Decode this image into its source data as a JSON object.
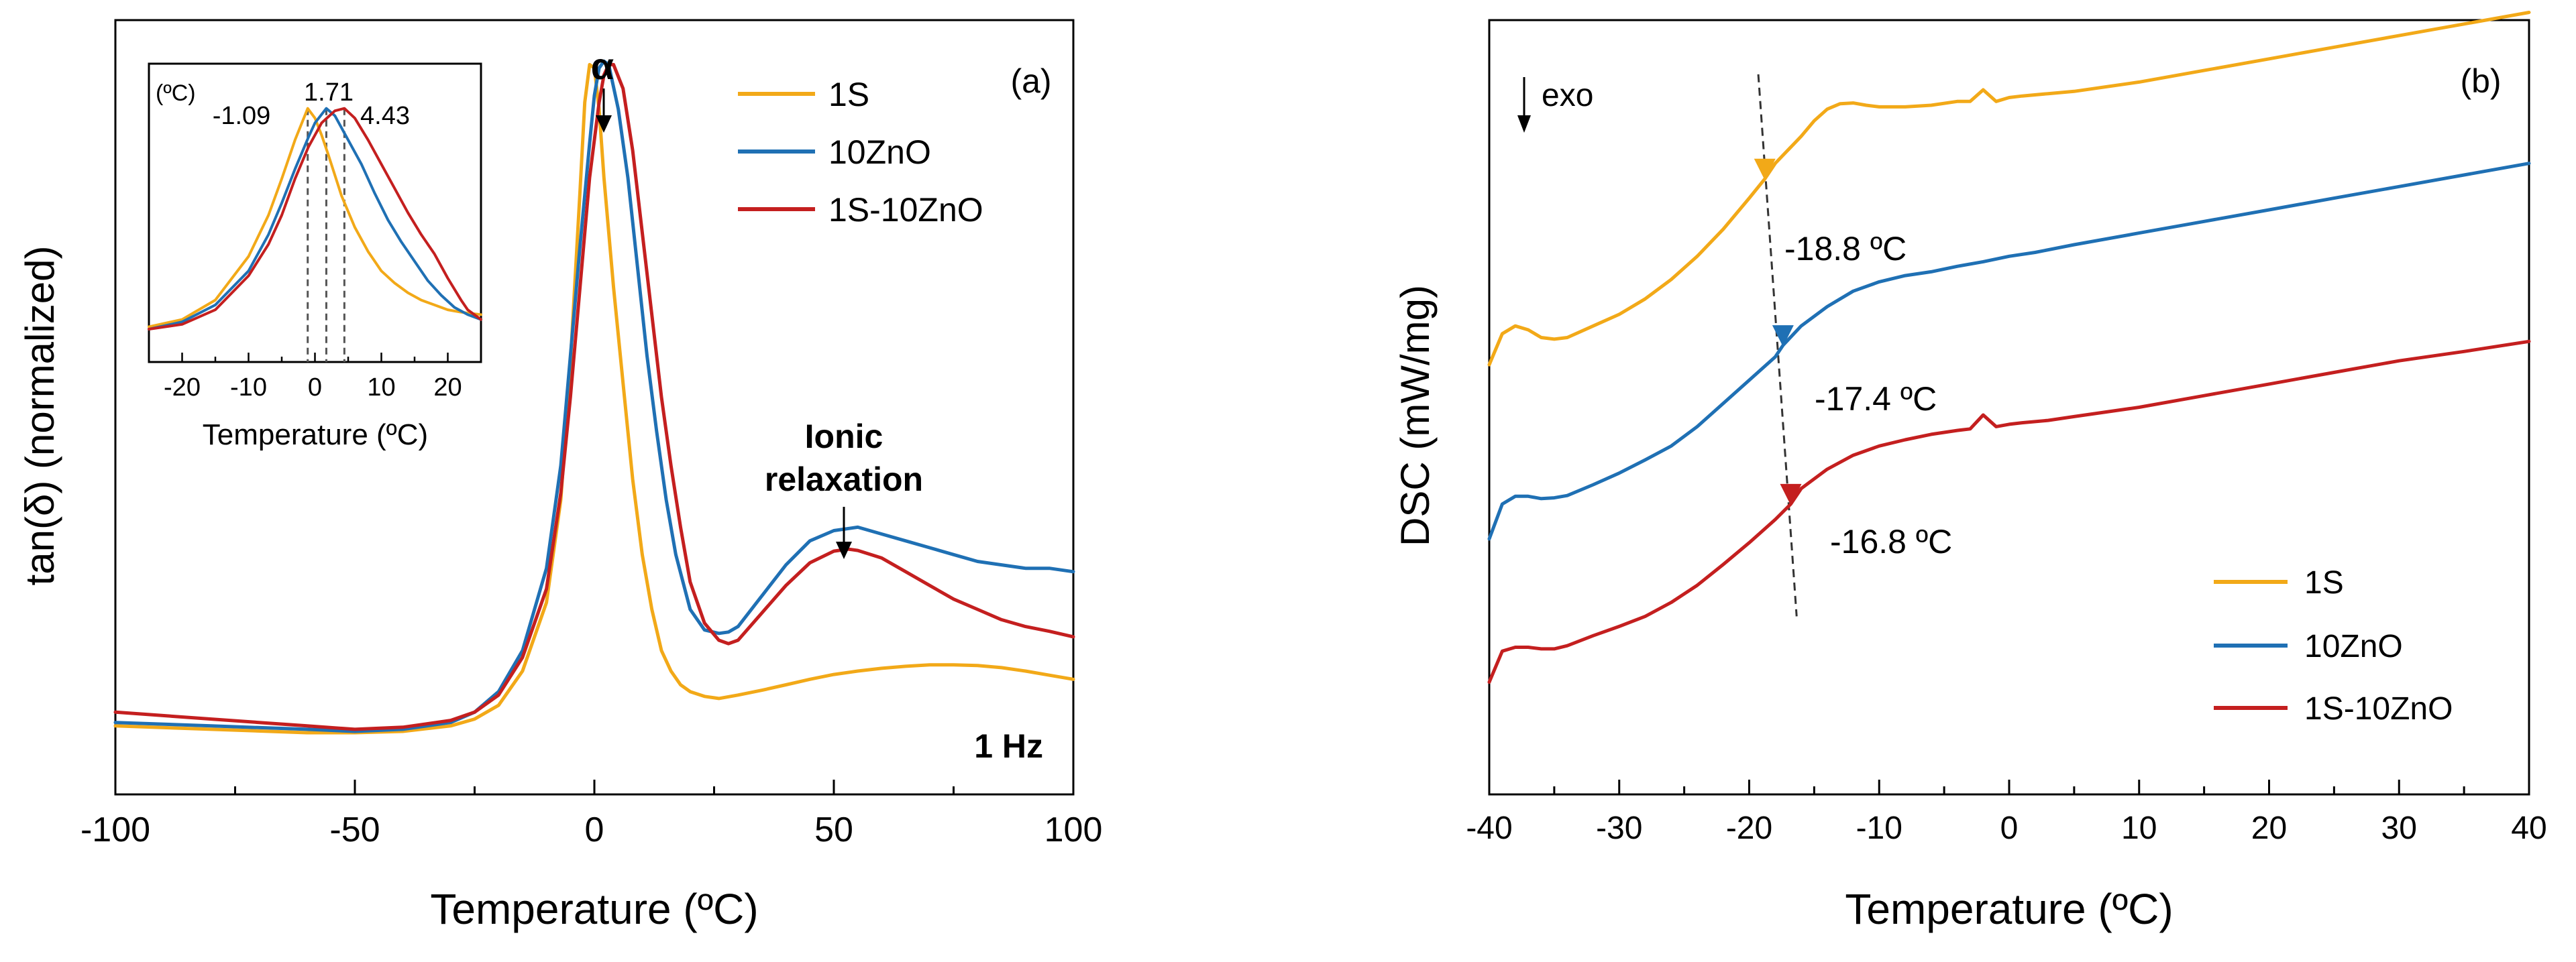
{
  "colors": {
    "1S": "#f2a918",
    "10ZnO": "#1f70b4",
    "1S-10ZnO": "#c41f1f",
    "axis": "#000000",
    "guide": "#555555"
  },
  "panel_a": {
    "panel_label": "(a)",
    "ylabel": "tan(δ) (normalized)",
    "xlabel": "Temperature (ºC)",
    "frequency_label": "1 Hz",
    "alpha_label": "α",
    "ionic_label_line1": "Ionic",
    "ionic_label_line2": "relaxation",
    "legend": [
      "1S",
      "10ZnO",
      "1S-10ZnO"
    ],
    "inset": {
      "xlabel": "Temperature (ºC)",
      "unit_label": "(ºC)",
      "peak_labels": [
        "-1.09",
        "1.71",
        "4.43"
      ]
    }
  },
  "panel_b": {
    "panel_label": "(b)",
    "ylabel": "DSC (mW/mg)",
    "xlabel": "Temperature (ºC)",
    "exo_label": "exo",
    "tg_labels": [
      "-18.8 ºC",
      "-17.4 ºC",
      "-16.8 ºC"
    ],
    "legend": [
      "1S",
      "10ZnO",
      "1S-10ZnO"
    ]
  },
  "chart_data": [
    {
      "type": "line",
      "title": "(a)",
      "xlabel": "Temperature (ºC)",
      "ylabel": "tan(δ) (normalized)",
      "xlim": [
        -100,
        100
      ],
      "ylim": [
        -0.08,
        1.05
      ],
      "xticks": [
        -100,
        -50,
        0,
        50,
        100
      ],
      "xtick_labels": [
        "-100",
        "-50",
        "0",
        "50",
        "100"
      ],
      "annotations": [
        "α",
        "Ionic relaxation",
        "1 Hz"
      ],
      "series": [
        {
          "name": "1S",
          "x": [
            -100,
            -80,
            -60,
            -50,
            -40,
            -30,
            -25,
            -20,
            -15,
            -10,
            -7,
            -5,
            -3,
            -2,
            -1,
            0,
            1,
            2,
            4,
            6,
            8,
            10,
            12,
            14,
            16,
            18,
            20,
            23,
            26,
            30,
            35,
            40,
            45,
            50,
            55,
            60,
            65,
            70,
            75,
            80,
            85,
            90,
            95,
            100
          ],
          "y": [
            0.02,
            0.015,
            0.01,
            0.01,
            0.012,
            0.02,
            0.03,
            0.05,
            0.1,
            0.2,
            0.35,
            0.55,
            0.8,
            0.93,
            0.985,
            0.98,
            0.92,
            0.82,
            0.66,
            0.52,
            0.38,
            0.27,
            0.19,
            0.13,
            0.1,
            0.08,
            0.07,
            0.063,
            0.06,
            0.065,
            0.072,
            0.08,
            0.088,
            0.095,
            0.1,
            0.104,
            0.107,
            0.109,
            0.109,
            0.108,
            0.105,
            0.1,
            0.094,
            0.088
          ]
        },
        {
          "name": "10ZnO",
          "x": [
            -100,
            -80,
            -60,
            -50,
            -40,
            -30,
            -25,
            -20,
            -15,
            -10,
            -7,
            -5,
            -3,
            -1,
            0,
            1,
            2,
            3,
            5,
            7,
            9,
            11,
            13,
            15,
            17,
            20,
            23,
            26,
            28,
            30,
            35,
            40,
            45,
            50,
            55,
            60,
            65,
            70,
            75,
            80,
            85,
            90,
            95,
            100
          ],
          "y": [
            0.025,
            0.02,
            0.015,
            0.012,
            0.015,
            0.025,
            0.04,
            0.07,
            0.13,
            0.25,
            0.4,
            0.56,
            0.72,
            0.87,
            0.94,
            0.98,
            0.99,
            0.985,
            0.92,
            0.82,
            0.69,
            0.56,
            0.45,
            0.35,
            0.27,
            0.19,
            0.16,
            0.155,
            0.157,
            0.165,
            0.21,
            0.255,
            0.29,
            0.305,
            0.31,
            0.3,
            0.29,
            0.28,
            0.27,
            0.26,
            0.255,
            0.25,
            0.25,
            0.245
          ]
        },
        {
          "name": "1S-10ZnO",
          "x": [
            -100,
            -80,
            -60,
            -50,
            -40,
            -30,
            -25,
            -20,
            -15,
            -10,
            -7,
            -5,
            -3,
            -1,
            1,
            2,
            3,
            4,
            6,
            8,
            10,
            12,
            14,
            16,
            18,
            20,
            23,
            26,
            28,
            30,
            35,
            40,
            45,
            50,
            53,
            55,
            60,
            65,
            70,
            75,
            80,
            85,
            90,
            95,
            100
          ],
          "y": [
            0.04,
            0.03,
            0.02,
            0.015,
            0.018,
            0.028,
            0.04,
            0.065,
            0.12,
            0.22,
            0.36,
            0.5,
            0.66,
            0.82,
            0.93,
            0.97,
            0.985,
            0.985,
            0.95,
            0.86,
            0.74,
            0.62,
            0.5,
            0.4,
            0.31,
            0.23,
            0.17,
            0.145,
            0.14,
            0.145,
            0.185,
            0.225,
            0.258,
            0.275,
            0.278,
            0.276,
            0.265,
            0.245,
            0.225,
            0.205,
            0.19,
            0.175,
            0.165,
            0.158,
            0.15
          ]
        }
      ],
      "inset": {
        "type": "line",
        "xlabel": "Temperature (ºC)",
        "xlim": [
          -25,
          25
        ],
        "ylim": [
          0,
          1.05
        ],
        "xticks": [
          -20,
          -10,
          0,
          10,
          20
        ],
        "xtick_labels": [
          "-20",
          "-10",
          "0",
          "10",
          "20"
        ],
        "peak_markers": [
          -1.09,
          1.71,
          4.43
        ],
        "series": [
          {
            "name": "1S",
            "x": [
              -25,
              -20,
              -15,
              -10,
              -7,
              -5,
              -3,
              -1.09,
              0,
              1,
              2,
              4,
              6,
              8,
              10,
              12,
              14,
              16,
              18,
              20,
              22,
              25
            ],
            "y": [
              0.09,
              0.12,
              0.2,
              0.38,
              0.55,
              0.7,
              0.86,
              0.99,
              0.95,
              0.88,
              0.8,
              0.63,
              0.5,
              0.4,
              0.32,
              0.27,
              0.23,
              0.2,
              0.18,
              0.16,
              0.15,
              0.14
            ]
          },
          {
            "name": "10ZnO",
            "x": [
              -25,
              -20,
              -15,
              -10,
              -7,
              -5,
              -3,
              -1,
              0,
              1.71,
              3,
              5,
              7,
              9,
              11,
              13,
              15,
              17,
              19,
              21,
              23,
              25
            ],
            "y": [
              0.08,
              0.11,
              0.18,
              0.32,
              0.47,
              0.6,
              0.74,
              0.87,
              0.93,
              0.99,
              0.96,
              0.86,
              0.76,
              0.64,
              0.53,
              0.44,
              0.36,
              0.28,
              0.22,
              0.17,
              0.14,
              0.12
            ]
          },
          {
            "name": "1S-10ZnO",
            "x": [
              -25,
              -20,
              -15,
              -10,
              -7,
              -5,
              -3,
              -1,
              1,
              3,
              4.43,
              6,
              8,
              10,
              12,
              14,
              16,
              18,
              20,
              22,
              23,
              25
            ],
            "y": [
              0.08,
              0.1,
              0.16,
              0.3,
              0.43,
              0.55,
              0.7,
              0.83,
              0.93,
              0.98,
              0.99,
              0.95,
              0.86,
              0.76,
              0.66,
              0.56,
              0.47,
              0.39,
              0.29,
              0.2,
              0.16,
              0.12
            ]
          }
        ]
      }
    },
    {
      "type": "line",
      "title": "(b)",
      "xlabel": "Temperature (ºC)",
      "ylabel": "DSC (mW/mg)",
      "xlim": [
        -40,
        40
      ],
      "ylim": [
        0,
        10
      ],
      "xticks": [
        -40,
        -30,
        -20,
        -10,
        0,
        10,
        20,
        30,
        40
      ],
      "xtick_labels": [
        "-40",
        "-30",
        "-20",
        "-10",
        "0",
        "10",
        "20",
        "30",
        "40"
      ],
      "annotations": [
        "exo",
        "-18.8 ºC",
        "-17.4 ºC",
        "-16.8 ºC"
      ],
      "tg": [
        -18.8,
        -17.4,
        -16.8
      ],
      "series": [
        {
          "name": "1S",
          "x": [
            -40,
            -39,
            -38,
            -37,
            -36,
            -35,
            -34,
            -32,
            -30,
            -28,
            -26,
            -24,
            -22,
            -20,
            -18.8,
            -18,
            -16,
            -15,
            -14,
            -13,
            -12,
            -11,
            -10,
            -8,
            -6,
            -4,
            -3,
            -2,
            -1,
            0,
            1,
            3,
            5,
            10,
            15,
            20,
            25,
            30,
            35,
            40
          ],
          "y": [
            5.55,
            5.95,
            6.05,
            6.0,
            5.9,
            5.88,
            5.9,
            6.05,
            6.2,
            6.4,
            6.65,
            6.95,
            7.3,
            7.7,
            7.95,
            8.15,
            8.5,
            8.7,
            8.85,
            8.92,
            8.93,
            8.9,
            8.88,
            8.88,
            8.9,
            8.95,
            8.95,
            9.1,
            8.95,
            9.0,
            9.02,
            9.05,
            9.08,
            9.2,
            9.35,
            9.5,
            9.65,
            9.8,
            9.95,
            10.1
          ]
        },
        {
          "name": "10ZnO",
          "x": [
            -40,
            -39,
            -38,
            -37,
            -36,
            -35,
            -34,
            -32,
            -30,
            -28,
            -26,
            -24,
            -22,
            -20,
            -18,
            -17.4,
            -16,
            -14,
            -12,
            -10,
            -8,
            -6,
            -4,
            -2,
            0,
            2,
            5,
            10,
            15,
            20,
            25,
            30,
            35,
            40
          ],
          "y": [
            3.3,
            3.75,
            3.85,
            3.85,
            3.82,
            3.83,
            3.86,
            4.0,
            4.15,
            4.32,
            4.5,
            4.75,
            5.05,
            5.35,
            5.65,
            5.8,
            6.05,
            6.3,
            6.5,
            6.62,
            6.7,
            6.75,
            6.82,
            6.88,
            6.95,
            7.0,
            7.1,
            7.25,
            7.4,
            7.55,
            7.7,
            7.85,
            8.0,
            8.15
          ]
        },
        {
          "name": "1S-10ZnO",
          "x": [
            -40,
            -39,
            -38,
            -37,
            -36,
            -35,
            -34,
            -32,
            -30,
            -28,
            -26,
            -24,
            -22,
            -20,
            -18,
            -16.8,
            -16,
            -14,
            -12,
            -10,
            -8,
            -6,
            -4,
            -3,
            -2,
            -1,
            0,
            1,
            3,
            5,
            10,
            15,
            20,
            25,
            30,
            35,
            40
          ],
          "y": [
            1.45,
            1.85,
            1.9,
            1.9,
            1.88,
            1.88,
            1.92,
            2.05,
            2.17,
            2.3,
            2.48,
            2.7,
            2.97,
            3.25,
            3.55,
            3.75,
            3.95,
            4.2,
            4.38,
            4.5,
            4.58,
            4.65,
            4.7,
            4.72,
            4.9,
            4.75,
            4.78,
            4.8,
            4.83,
            4.88,
            5.0,
            5.15,
            5.3,
            5.45,
            5.6,
            5.72,
            5.85
          ]
        }
      ]
    }
  ]
}
